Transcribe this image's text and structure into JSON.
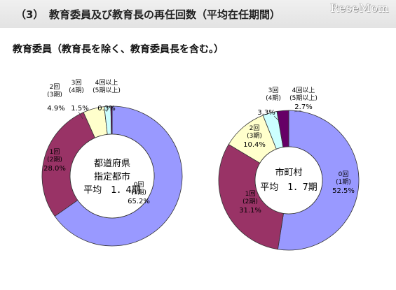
{
  "page": {
    "section_title": "（3）　教育委員及び教育長の再任回数（平均在任期間）",
    "subtitle": "教育委員（教育長を除く、教育委員長を含む。）",
    "watermark": "ReseMom"
  },
  "chart_data": [
    {
      "type": "pie",
      "center_lines": [
        "都道府県",
        "指定都市",
        "平均　1．4期"
      ],
      "slices": [
        {
          "label_lines": [
            "0回",
            "(1期)"
          ],
          "value": 65.2,
          "value_text": "65.2%",
          "color": "#9999ff"
        },
        {
          "label_lines": [
            "1回",
            "(2期)"
          ],
          "value": 28.0,
          "value_text": "28.0%",
          "color": "#993366"
        },
        {
          "label_lines": [
            "2回",
            "(3期)"
          ],
          "value": 4.9,
          "value_text": "4.9%",
          "color": "#ffffcc"
        },
        {
          "label_lines": [
            "3回",
            "(4期)"
          ],
          "value": 1.5,
          "value_text": "1.5%",
          "color": "#ccffff"
        },
        {
          "label_lines": [
            "4回以上",
            "(5期以上)"
          ],
          "value": 0.3,
          "value_text": "0.3%",
          "color": "#660066"
        }
      ]
    },
    {
      "type": "pie",
      "center_lines": [
        "市町村",
        "平均　1．7期"
      ],
      "slices": [
        {
          "label_lines": [
            "0回",
            "(1期)"
          ],
          "value": 52.5,
          "value_text": "52.5%",
          "color": "#9999ff"
        },
        {
          "label_lines": [
            "1回",
            "(2期)"
          ],
          "value": 31.1,
          "value_text": "31.1%",
          "color": "#993366"
        },
        {
          "label_lines": [
            "2回",
            "(3期)"
          ],
          "value": 10.4,
          "value_text": "10.4%",
          "color": "#ffffcc"
        },
        {
          "label_lines": [
            "3回",
            "(4期)"
          ],
          "value": 3.3,
          "value_text": "3.3%",
          "color": "#ccffff"
        },
        {
          "label_lines": [
            "4回以上",
            "(5期以上)"
          ],
          "value": 2.7,
          "value_text": "2.7%",
          "color": "#660066"
        }
      ]
    }
  ]
}
